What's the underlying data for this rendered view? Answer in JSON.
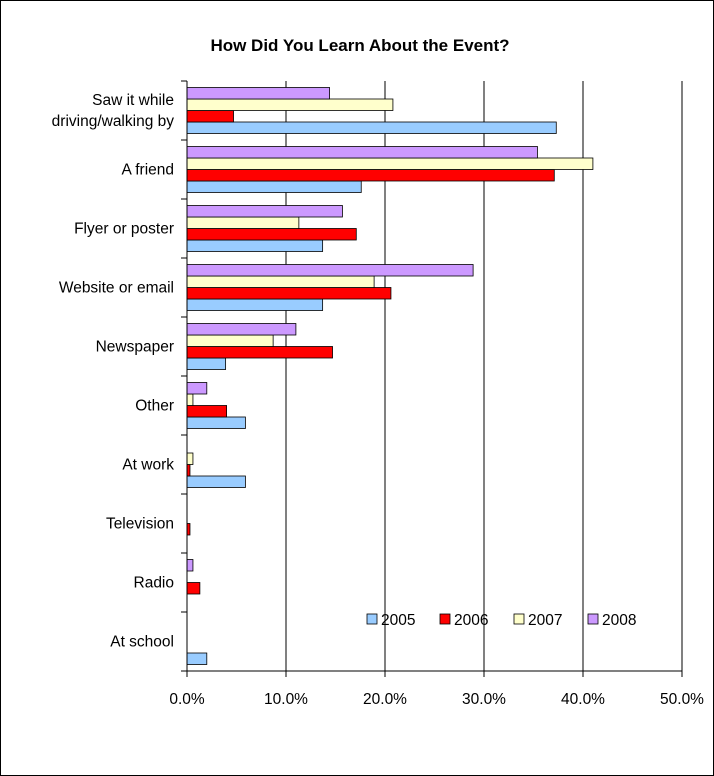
{
  "chart_data": {
    "type": "bar",
    "orientation": "horizontal",
    "title": "How Did You Learn About the Event?",
    "categories": [
      "Saw it while driving/walking by",
      "A friend",
      "Flyer or poster",
      "Website or email",
      "Newspaper",
      "Other",
      "At work",
      "Television",
      "Radio",
      "At school"
    ],
    "category_lines": [
      [
        "Saw it while",
        "driving/walking by"
      ],
      [
        "A friend"
      ],
      [
        "Flyer or poster"
      ],
      [
        "Website or email"
      ],
      [
        "Newspaper"
      ],
      [
        "Other"
      ],
      [
        "At work"
      ],
      [
        "Television"
      ],
      [
        "Radio"
      ],
      [
        "At school"
      ]
    ],
    "series": [
      {
        "name": "2005",
        "color": "#99CCFF",
        "values": [
          37.3,
          17.6,
          13.7,
          13.7,
          3.9,
          5.9,
          5.9,
          0.0,
          0.0,
          2.0
        ]
      },
      {
        "name": "2006",
        "color": "#FF0000",
        "values": [
          4.7,
          37.1,
          17.1,
          20.6,
          14.7,
          4.0,
          0.3,
          0.3,
          1.3,
          0.0
        ]
      },
      {
        "name": "2007",
        "color": "#FFFFCC",
        "values": [
          20.8,
          41.0,
          11.3,
          18.9,
          8.7,
          0.6,
          0.6,
          0.0,
          0.0,
          0.0
        ]
      },
      {
        "name": "2008",
        "color": "#CC99FF",
        "values": [
          14.4,
          35.4,
          15.7,
          28.9,
          11.0,
          2.0,
          0.0,
          0.0,
          0.6,
          0.0
        ]
      }
    ],
    "x_ticks": [
      "0.0%",
      "10.0%",
      "20.0%",
      "30.0%",
      "40.0%",
      "50.0%"
    ],
    "xlim": [
      0,
      50
    ],
    "grid": true,
    "legend_position": "bottom-right"
  }
}
